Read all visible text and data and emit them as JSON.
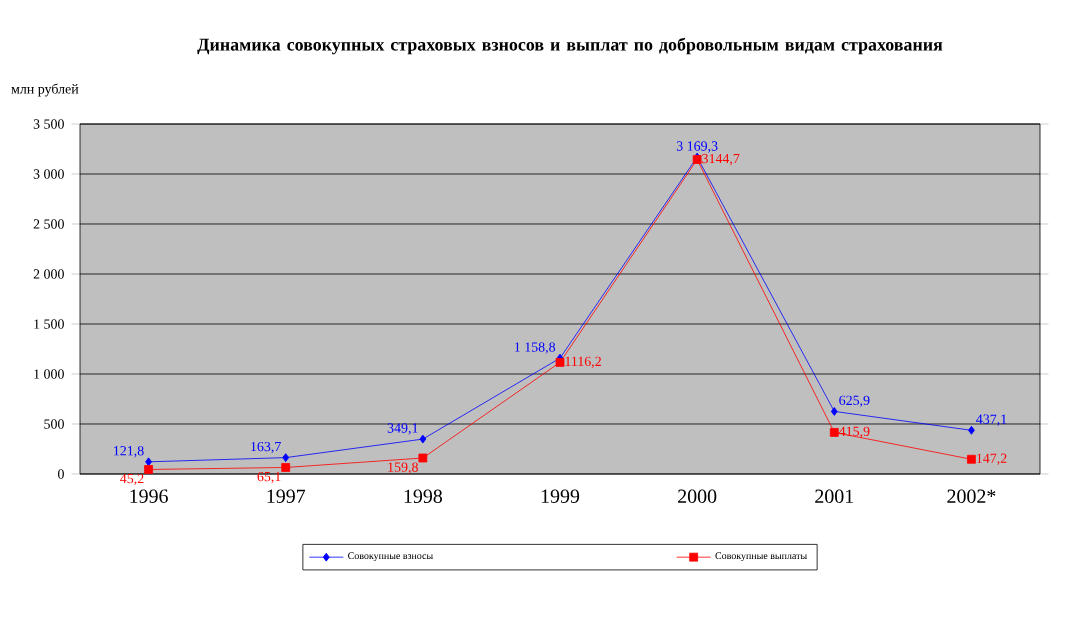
{
  "chart_data": {
    "type": "line",
    "title": "Динамика совокупных страховых взносов и выплат по добровольным видам страхования",
    "ylabel": "млн рублей",
    "categories": [
      "1996",
      "1997",
      "1998",
      "1999",
      "2000",
      "2001",
      "2002*"
    ],
    "series": [
      {
        "name": "Совокупные взносы",
        "color": "#0000ff",
        "marker": "diamond",
        "values": [
          121.8,
          163.7,
          349.1,
          1158.8,
          3169.3,
          625.9,
          437.1
        ],
        "value_labels": [
          "121,8",
          "163,7",
          "349,1",
          "1 158,8",
          "3 169,3",
          "625,9",
          "437,1"
        ]
      },
      {
        "name": "Совокупные выплаты",
        "color": "#ff0000",
        "marker": "square",
        "values": [
          45.2,
          65.1,
          159.8,
          1116.2,
          3144.7,
          415.9,
          147.2
        ],
        "value_labels": [
          "45,2",
          "65,1",
          "159,8",
          "1116,2",
          "3144,7",
          "415,9",
          "147,2"
        ]
      }
    ],
    "ylim": [
      0,
      3500
    ],
    "yticks": [
      {
        "value": 0,
        "label": "0"
      },
      {
        "value": 500,
        "label": "500"
      },
      {
        "value": 1000,
        "label": "1 000"
      },
      {
        "value": 1500,
        "label": "1 500"
      },
      {
        "value": 2000,
        "label": "2 000"
      },
      {
        "value": 2500,
        "label": "2 500"
      },
      {
        "value": 3000,
        "label": "3 000"
      },
      {
        "value": 3500,
        "label": "3 500"
      }
    ],
    "grid": "y",
    "legend": "bottom",
    "line_style": "solid"
  }
}
